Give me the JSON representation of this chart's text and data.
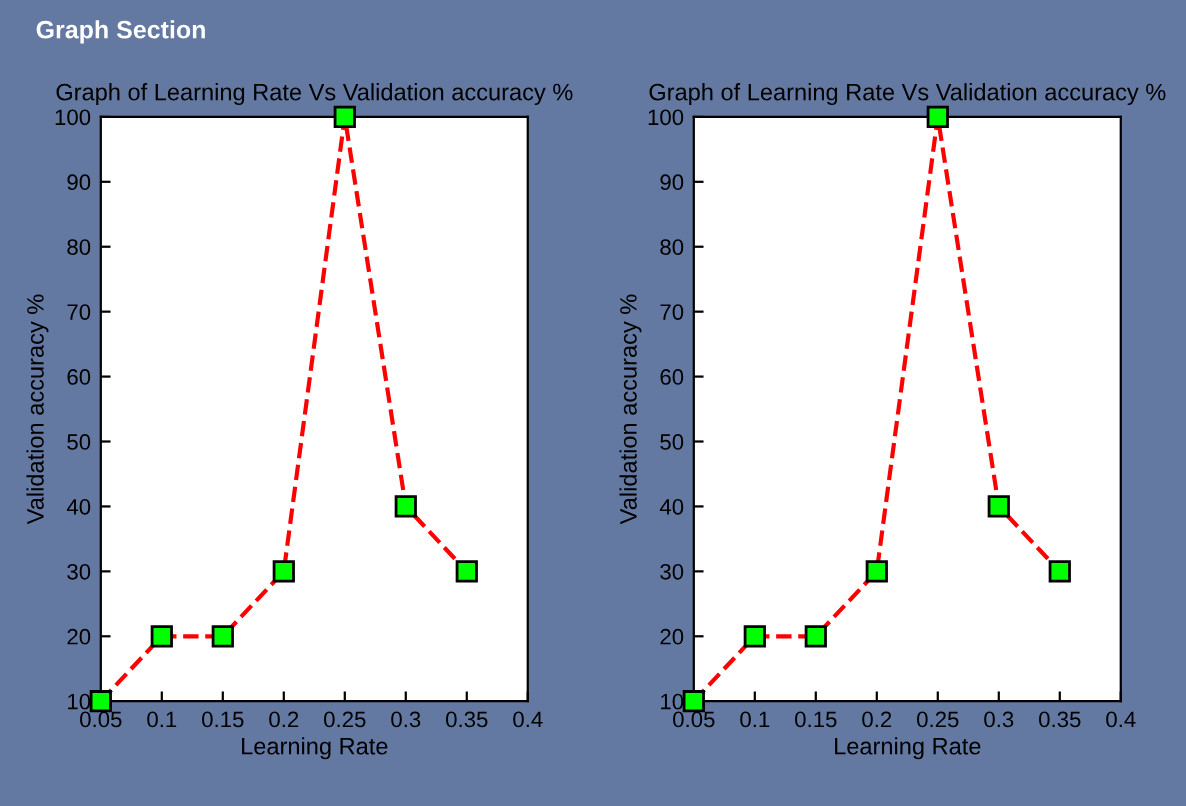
{
  "chart_data": [
    {
      "type": "line",
      "title": "Graph of Learning Rate Vs Validation accuracy %",
      "xlabel": "Learning Rate",
      "ylabel": "Validation accuracy %",
      "annotations": [
        "Graph Section"
      ],
      "x": [
        0.05,
        0.1,
        0.15,
        0.2,
        0.25,
        0.3,
        0.35
      ],
      "series": [
        {
          "color": "#ff0000",
          "values": [
            10,
            20,
            20,
            30,
            100,
            40,
            30
          ]
        }
      ],
      "xlim": [
        0.05,
        0.4
      ],
      "ylim": [
        10,
        100
      ],
      "xticks": [
        0.05,
        0.1,
        0.15,
        0.2,
        0.25,
        0.3,
        0.35,
        0.4
      ],
      "yticks": [
        10,
        20,
        30,
        40,
        50,
        60,
        70,
        80,
        90,
        100
      ],
      "marker": "square",
      "line_style": "dashed"
    },
    {
      "type": "line",
      "title": "Graph of Learning Rate Vs Validation accuracy %",
      "xlabel": "Learning Rate",
      "ylabel": "Validation accuracy %",
      "x": [
        0.05,
        0.1,
        0.15,
        0.2,
        0.25,
        0.3,
        0.35
      ],
      "series": [
        {
          "color": "#ff0000",
          "values": [
            10,
            20,
            20,
            30,
            100,
            40,
            30
          ]
        }
      ],
      "xlim": [
        0.05,
        0.4
      ],
      "ylim": [
        10,
        100
      ],
      "xticks": [
        0.05,
        0.1,
        0.15,
        0.2,
        0.25,
        0.3,
        0.35,
        0.4
      ],
      "yticks": [
        10,
        20,
        30,
        40,
        50,
        60,
        70,
        80,
        90,
        100
      ],
      "marker": "square",
      "line_style": "dashed"
    }
  ]
}
